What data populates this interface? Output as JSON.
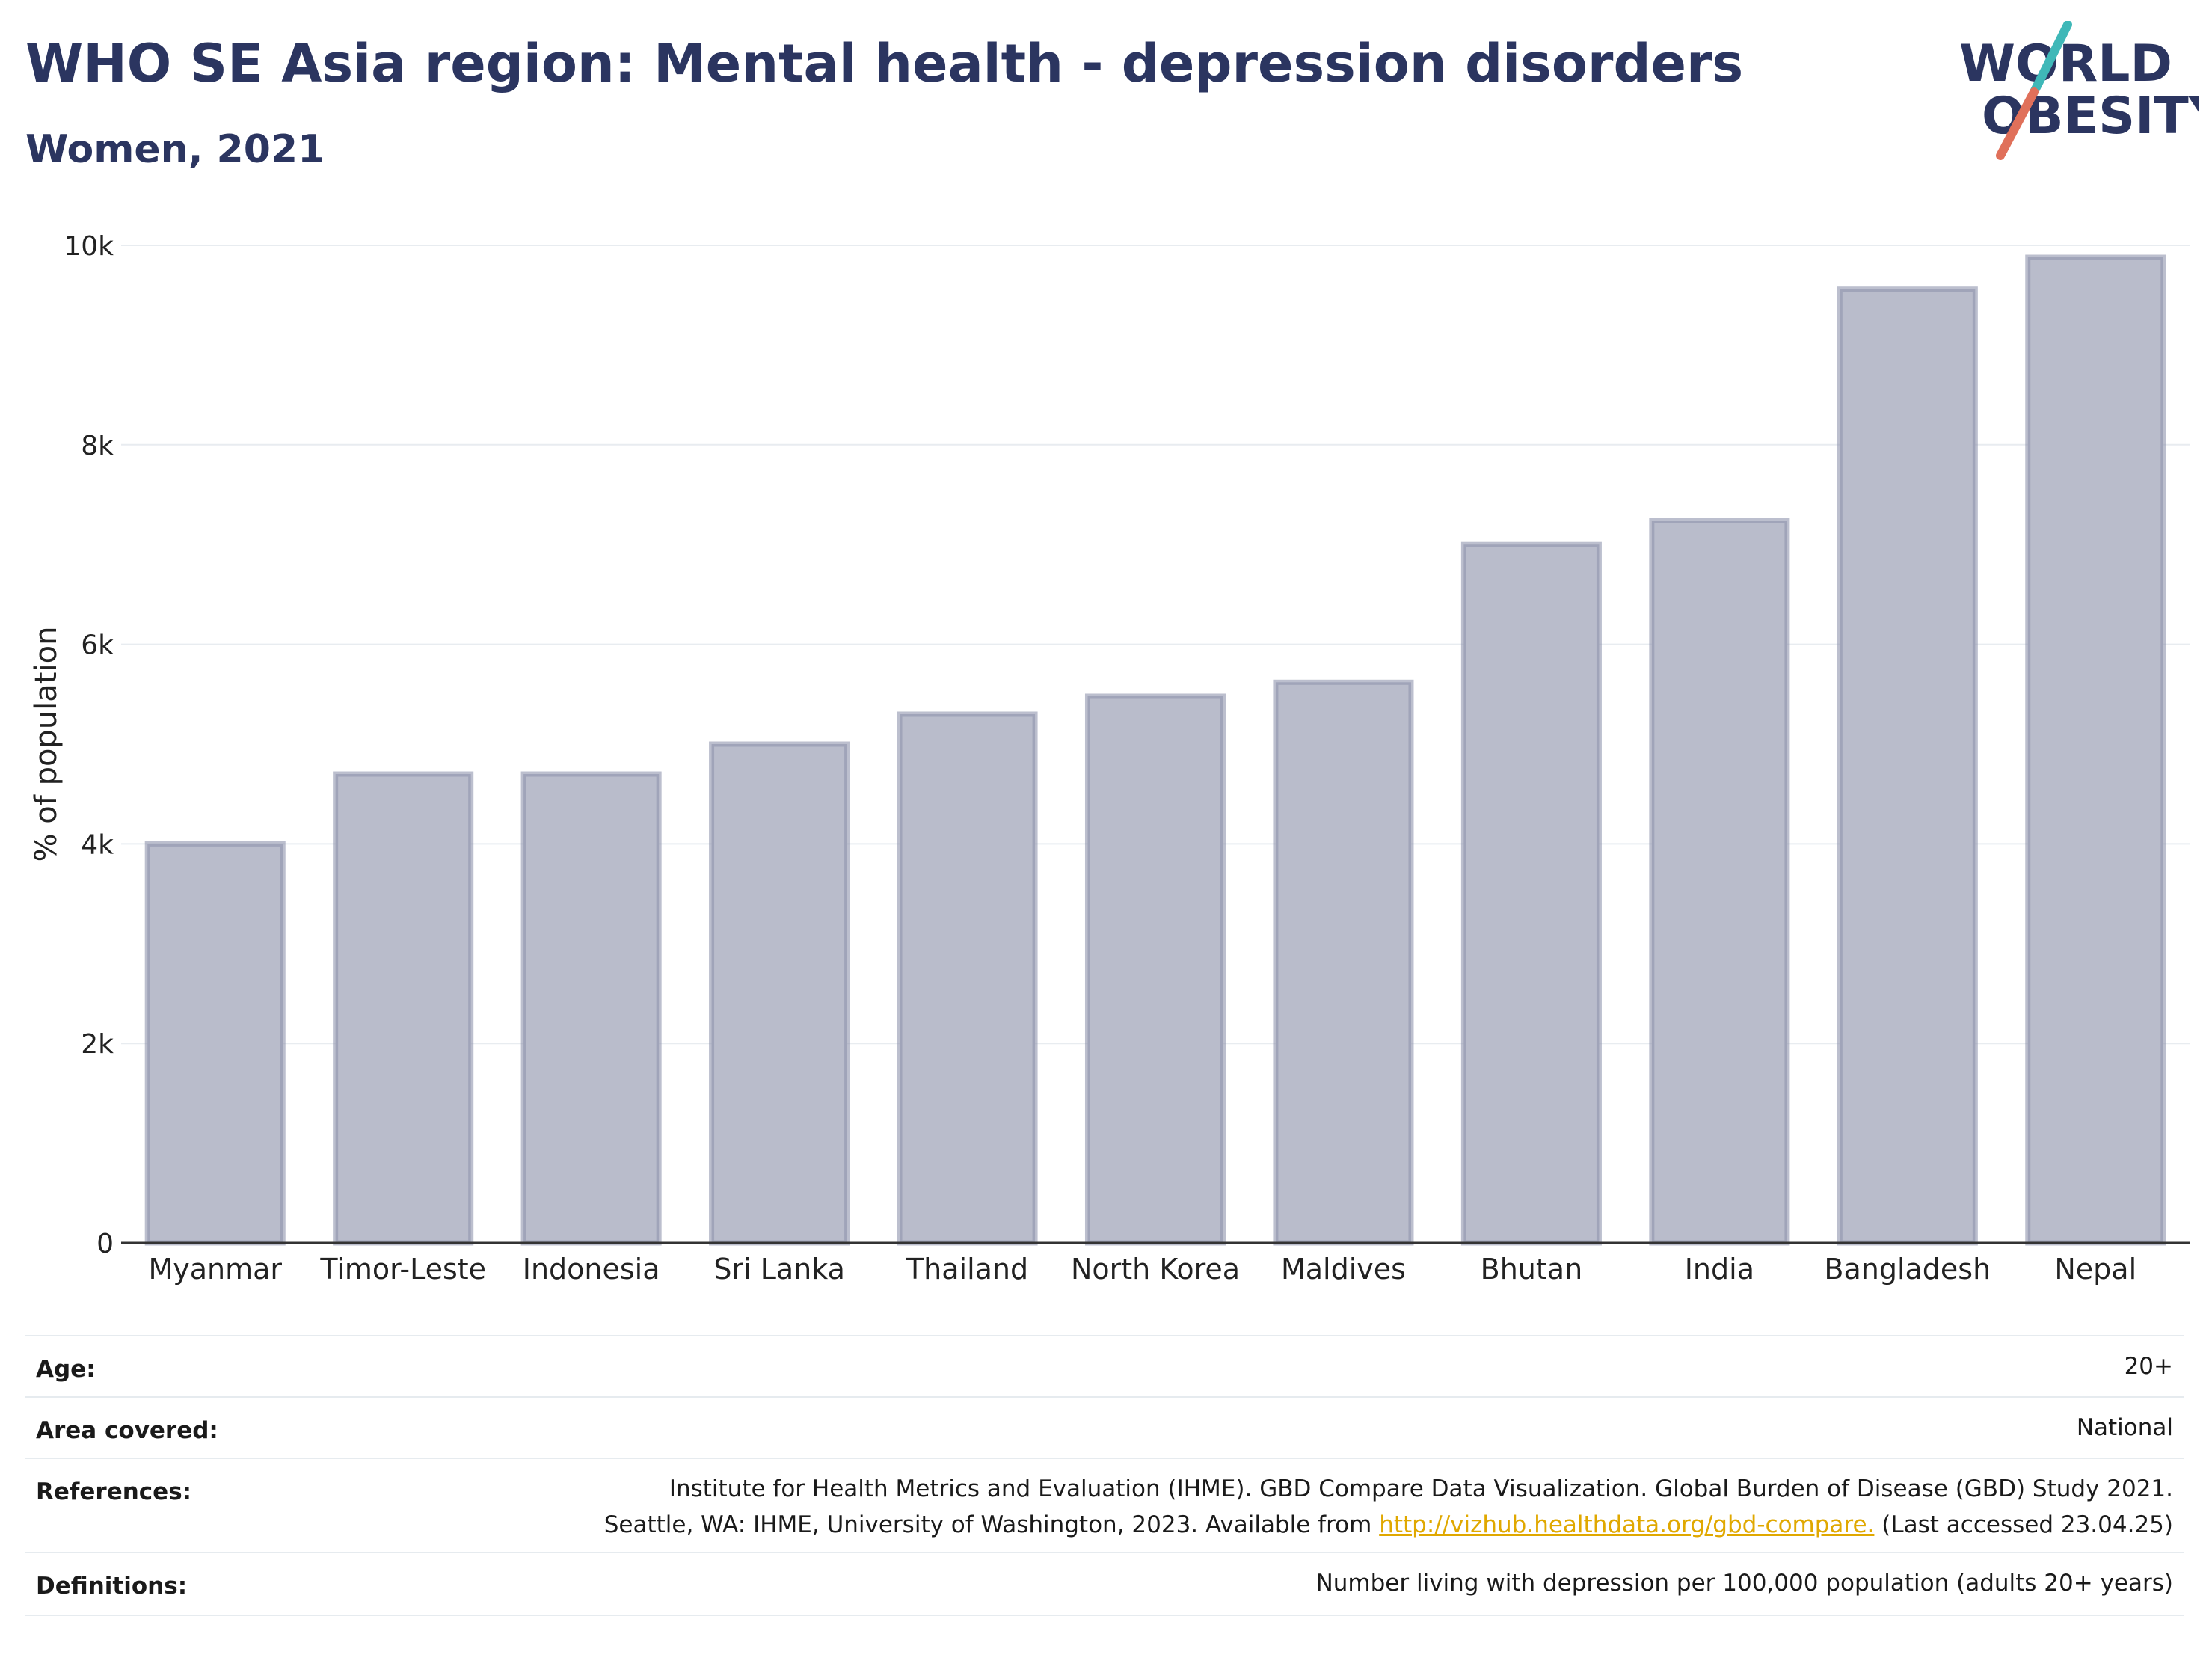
{
  "header": {
    "title": "WHO SE Asia region: Mental health - depression disorders",
    "subtitle": "Women, 2021"
  },
  "logo": {
    "line1": "WORLD",
    "line2": "OBESITY",
    "accent_teal": "#3fb8b8",
    "accent_coral": "#e0705a",
    "text_color": "#2b3560"
  },
  "chart_data": {
    "type": "bar",
    "title": "WHO SE Asia region: Mental health - depression disorders",
    "subtitle": "Women, 2021",
    "xlabel": "",
    "ylabel": "% of population",
    "categories": [
      "Myanmar",
      "Timor-Leste",
      "Indonesia",
      "Sri Lanka",
      "Thailand",
      "North Korea",
      "Maldives",
      "Bhutan",
      "India",
      "Bangladesh",
      "Nepal"
    ],
    "values": [
      4000,
      4700,
      4700,
      5000,
      5300,
      5480,
      5620,
      7000,
      7240,
      9560,
      9880
    ],
    "ylim": [
      0,
      10000
    ],
    "yticks": [
      0,
      2000,
      4000,
      6000,
      8000,
      10000
    ],
    "ytick_labels": [
      "0",
      "2k",
      "4k",
      "6k",
      "8k",
      "10k"
    ],
    "grid": true,
    "legend": "none",
    "bar_color": "#b9bccb",
    "bar_edge_color": "#8f94ad"
  },
  "info": {
    "age_label": "Age:",
    "age_value": "20+",
    "area_label": "Area covered:",
    "area_value": "National",
    "references_label": "References:",
    "references_line1": "Institute for Health Metrics and Evaluation (IHME). GBD Compare Data Visualization. Global Burden of Disease (GBD) Study 2021.",
    "references_line2_pre": "Seattle, WA: IHME, University of Washington, 2023. Available from ",
    "references_link": "http://vizhub.healthdata.org/gbd-compare.",
    "references_line2_post": " (Last accessed 23.04.25)",
    "definitions_label": "Definitions:",
    "definitions_value": "Number living with depression per 100,000 population (adults 20+ years)"
  }
}
